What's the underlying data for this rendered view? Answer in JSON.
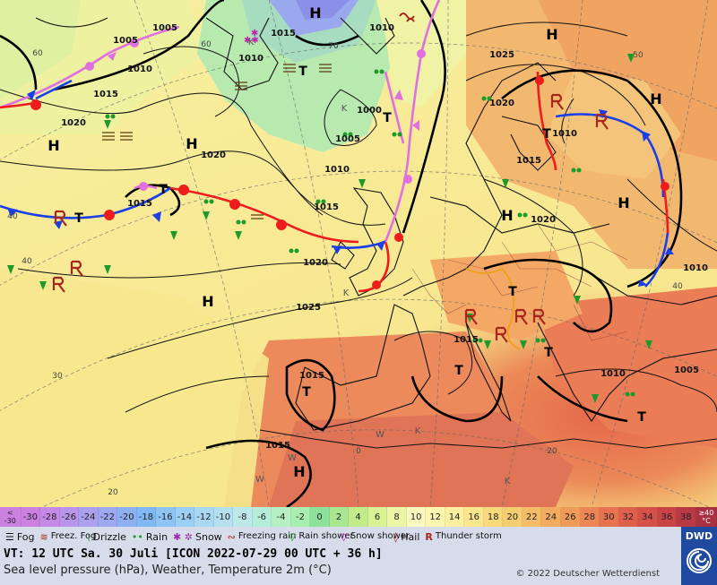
{
  "map": {
    "pressure_labels": [
      "1005",
      "1015",
      "1010",
      "1010",
      "1005",
      "1015",
      "1020",
      "1010",
      "1025",
      "1020",
      "1000",
      "1005",
      "1010",
      "1015",
      "1020",
      "1015",
      "1010",
      "1020",
      "1025",
      "1015",
      "1015",
      "1010",
      "1005",
      "1010",
      "1015",
      "1020",
      "1020",
      "1015"
    ],
    "pressure_centres": [
      "H",
      "H",
      "H",
      "H",
      "H",
      "H",
      "H",
      "H",
      "H",
      "H",
      "T",
      "T",
      "T",
      "T",
      "T",
      "T",
      "T",
      "T",
      "T",
      "T"
    ],
    "temp_labels": [
      "60",
      "60",
      "70",
      "50",
      "40",
      "40",
      "40",
      "30",
      "20",
      "20",
      "0",
      "0"
    ],
    "surface_letters": [
      "K",
      "K",
      "K",
      "K",
      "W",
      "W",
      "W",
      "K"
    ]
  },
  "scale": {
    "low_label": [
      "<",
      "-30"
    ],
    "high_label": [
      "≥40",
      "°C"
    ],
    "steps": [
      {
        "v": "-30",
        "c": "#cc80e0"
      },
      {
        "v": "-28",
        "c": "#c48ae6"
      },
      {
        "v": "-26",
        "c": "#b894ea"
      },
      {
        "v": "-24",
        "c": "#aaa0ee"
      },
      {
        "v": "-22",
        "c": "#9ca8f0"
      },
      {
        "v": "-20",
        "c": "#8cb0f2"
      },
      {
        "v": "-18",
        "c": "#7fb8f2"
      },
      {
        "v": "-16",
        "c": "#8ec4f4"
      },
      {
        "v": "-14",
        "c": "#9ccff4"
      },
      {
        "v": "-12",
        "c": "#aad8f2"
      },
      {
        "v": "-10",
        "c": "#b4e0f0"
      },
      {
        "v": "-8",
        "c": "#bce8ea"
      },
      {
        "v": "-6",
        "c": "#b4eed8"
      },
      {
        "v": "-4",
        "c": "#b6f0c2"
      },
      {
        "v": "-2",
        "c": "#a8eeb0"
      },
      {
        "v": "0",
        "c": "#8ce29a"
      },
      {
        "v": "2",
        "c": "#a8e690"
      },
      {
        "v": "4",
        "c": "#c2ec8c"
      },
      {
        "v": "6",
        "c": "#d8f294"
      },
      {
        "v": "8",
        "c": "#ecf6a6"
      },
      {
        "v": "10",
        "c": "#fafac0"
      },
      {
        "v": "12",
        "c": "#fcf6b0"
      },
      {
        "v": "14",
        "c": "#fcf0a0"
      },
      {
        "v": "16",
        "c": "#fae68c"
      },
      {
        "v": "18",
        "c": "#f8da7c"
      },
      {
        "v": "20",
        "c": "#f6cc70"
      },
      {
        "v": "22",
        "c": "#f4bc66"
      },
      {
        "v": "24",
        "c": "#f2ac5e"
      },
      {
        "v": "26",
        "c": "#f09a58"
      },
      {
        "v": "28",
        "c": "#ec8654"
      },
      {
        "v": "30",
        "c": "#e67250"
      },
      {
        "v": "32",
        "c": "#de604c"
      },
      {
        "v": "34",
        "c": "#d45048"
      },
      {
        "v": "36",
        "c": "#c84446"
      },
      {
        "v": "38",
        "c": "#b83a44"
      }
    ]
  },
  "legend": {
    "fog": "Fog",
    "freezing_fog": "Freez. Fog",
    "drizzle": "Drizzle",
    "rain": "Rain",
    "snow": "Snow",
    "freezing_rain": "Freezing rain",
    "rain_shower": "Rain shower",
    "snow_shower": "Snow shower",
    "hail": "Hail",
    "thunderstorm": "Thunder storm"
  },
  "info": {
    "valid_time": "VT: 12 UTC Sa.  30 Juli [ICON 2022-07-29  00 UTC + 36 h]",
    "description": "Sea level pressure (hPa), Weather, Temperature 2m (°C)",
    "copyright": "© 2022 Deutscher Wetterdienst"
  },
  "logo": {
    "text": "DWD"
  },
  "colors": {
    "warm_front": "#ee1c1c",
    "cold_front": "#1a3ee8",
    "occluded_front": "#e070e0",
    "legend_bg": "#d7dcea"
  }
}
